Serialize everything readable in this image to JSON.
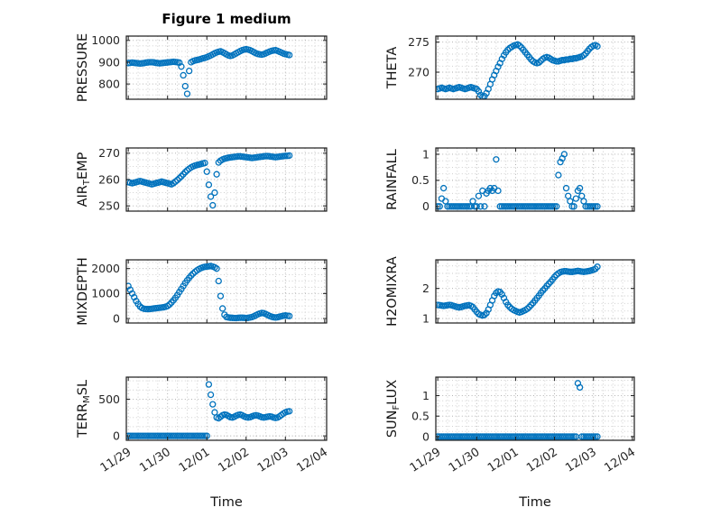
{
  "title": "Figure 1 medium",
  "xlabel": "Time",
  "marker_color": "#0072BD",
  "grid_major_color": "#a8a8a8",
  "grid_minor_color": "#c9c9c9",
  "x_tick_labels": [
    "11/29",
    "11/30",
    "12/01",
    "12/02",
    "12/03",
    "12/04"
  ],
  "x_tick_values": [
    0,
    1,
    2,
    3,
    4,
    5
  ],
  "xlim": [
    -0.05,
    5.05
  ],
  "time_days": [
    0,
    0.05,
    0.1,
    0.15,
    0.2,
    0.25,
    0.3,
    0.35,
    0.4,
    0.45,
    0.5,
    0.55,
    0.6,
    0.65,
    0.7,
    0.75,
    0.8,
    0.85,
    0.9,
    0.95,
    1,
    1.05,
    1.1,
    1.15,
    1.2,
    1.25,
    1.3,
    1.35,
    1.4,
    1.45,
    1.5,
    1.55,
    1.6,
    1.65,
    1.7,
    1.75,
    1.8,
    1.85,
    1.9,
    1.95,
    2,
    2.05,
    2.1,
    2.15,
    2.2,
    2.25,
    2.3,
    2.35,
    2.4,
    2.45,
    2.5,
    2.55,
    2.6,
    2.65,
    2.7,
    2.75,
    2.8,
    2.85,
    2.9,
    2.95,
    3,
    3.05,
    3.1,
    3.15,
    3.2,
    3.25,
    3.3,
    3.35,
    3.4,
    3.45,
    3.5,
    3.55,
    3.6,
    3.65,
    3.7,
    3.75,
    3.8,
    3.85,
    3.9,
    3.95,
    4,
    4.05,
    4.1
  ],
  "chart_data": [
    {
      "type": "scatter",
      "ylabel": "PRESSURE",
      "row": 0,
      "col": 0,
      "yticks": [
        800,
        900,
        1000
      ],
      "ylim": [
        730,
        1020
      ],
      "y_minor": 25,
      "y": [
        896,
        897,
        898,
        897,
        896,
        895,
        894,
        895,
        896,
        898,
        899,
        900,
        900,
        899,
        897,
        896,
        895,
        896,
        897,
        898,
        899,
        900,
        901,
        902,
        901,
        900,
        898,
        880,
        840,
        790,
        755,
        860,
        900,
        905,
        908,
        910,
        912,
        915,
        918,
        920,
        923,
        927,
        931,
        936,
        941,
        945,
        948,
        950,
        946,
        941,
        936,
        931,
        929,
        931,
        936,
        941,
        946,
        951,
        955,
        958,
        960,
        958,
        955,
        951,
        946,
        941,
        938,
        936,
        935,
        937,
        941,
        945,
        949,
        952,
        954,
        955,
        952,
        948,
        944,
        940,
        937,
        935,
        933
      ]
    },
    {
      "type": "scatter",
      "ylabel": "THETA",
      "row": 0,
      "col": 1,
      "yticks": [
        270,
        275
      ],
      "ylim": [
        265.5,
        276
      ],
      "y_minor": 1,
      "y": [
        267.2,
        267.3,
        267.4,
        267.3,
        267.2,
        267.3,
        267.4,
        267.3,
        267.2,
        267.3,
        267.4,
        267.5,
        267.4,
        267.3,
        267.2,
        267.3,
        267.4,
        267.5,
        267.4,
        267.3,
        267.2,
        266.8,
        266.2,
        265.9,
        266.0,
        266.5,
        267.2,
        268.0,
        268.8,
        269.5,
        270.2,
        270.9,
        271.5,
        272.2,
        272.8,
        273.3,
        273.7,
        274.0,
        274.2,
        274.4,
        274.5,
        274.6,
        274.4,
        274.1,
        273.7,
        273.3,
        272.9,
        272.5,
        272.1,
        271.8,
        271.6,
        271.5,
        271.6,
        271.9,
        272.2,
        272.4,
        272.5,
        272.4,
        272.2,
        272.0,
        271.9,
        271.8,
        271.8,
        271.9,
        272.0,
        272.0,
        272.1,
        272.1,
        272.2,
        272.2,
        272.3,
        272.3,
        272.4,
        272.5,
        272.6,
        272.8,
        273.1,
        273.5,
        273.9,
        274.2,
        274.4,
        274.5,
        274.3
      ]
    },
    {
      "type": "scatter",
      "ylabel": "AIR_TEMP",
      "row": 1,
      "col": 0,
      "yticks": [
        250,
        260,
        270
      ],
      "ylim": [
        248,
        272
      ],
      "y_minor": 2.5,
      "y": [
        259.0,
        258.8,
        258.6,
        258.8,
        259.0,
        259.2,
        259.4,
        259.2,
        259.0,
        258.8,
        258.6,
        258.4,
        258.2,
        258.4,
        258.6,
        258.8,
        259.0,
        259.2,
        259.0,
        258.8,
        258.6,
        258.4,
        258.2,
        258.6,
        259.2,
        259.8,
        260.5,
        261.2,
        262.0,
        262.8,
        263.5,
        264.1,
        264.6,
        265.0,
        265.3,
        265.5,
        265.7,
        265.9,
        266.1,
        266.3,
        263.0,
        258.0,
        253.5,
        250.2,
        255.0,
        262.0,
        266.5,
        267.2,
        267.6,
        267.9,
        268.1,
        268.3,
        268.4,
        268.5,
        268.6,
        268.7,
        268.8,
        268.8,
        268.7,
        268.6,
        268.5,
        268.4,
        268.3,
        268.2,
        268.3,
        268.4,
        268.5,
        268.6,
        268.7,
        268.8,
        268.9,
        268.9,
        268.8,
        268.7,
        268.6,
        268.5,
        268.6,
        268.7,
        268.8,
        268.9,
        269.0,
        269.0,
        269.1
      ]
    },
    {
      "type": "scatter",
      "ylabel": "RAINFALL",
      "row": 1,
      "col": 1,
      "yticks": [
        0,
        0.5,
        1
      ],
      "ylim": [
        -0.09,
        1.12
      ],
      "y_minor": 0.125,
      "y": [
        0,
        0,
        0.15,
        0.35,
        0.1,
        0,
        0,
        0,
        0,
        0,
        0,
        0,
        0,
        0,
        0,
        0,
        0,
        0,
        0.1,
        0,
        0,
        0.2,
        0,
        0.3,
        0,
        0.25,
        0.3,
        0.35,
        0.3,
        0.35,
        0.9,
        0.3,
        0,
        0,
        0,
        0,
        0,
        0,
        0,
        0,
        0,
        0,
        0,
        0,
        0,
        0,
        0,
        0,
        0,
        0,
        0,
        0,
        0,
        0,
        0,
        0,
        0,
        0,
        0,
        0,
        0,
        0,
        0.6,
        0.85,
        0.92,
        1.0,
        0.35,
        0.2,
        0.1,
        0,
        0,
        0.15,
        0.3,
        0.35,
        0.2,
        0.1,
        0,
        0,
        0,
        0,
        0,
        0,
        0
      ]
    },
    {
      "type": "scatter",
      "ylabel": "MIXDEPTH",
      "row": 2,
      "col": 0,
      "yticks": [
        0,
        1000,
        2000
      ],
      "ylim": [
        -180,
        2350
      ],
      "y_minor": 250,
      "y": [
        1300,
        1150,
        1000,
        850,
        700,
        580,
        480,
        420,
        390,
        380,
        375,
        380,
        390,
        400,
        410,
        420,
        430,
        440,
        450,
        470,
        500,
        560,
        640,
        730,
        830,
        940,
        1060,
        1180,
        1300,
        1420,
        1530,
        1630,
        1720,
        1800,
        1870,
        1930,
        1980,
        2020,
        2050,
        2070,
        2080,
        2090,
        2100,
        2080,
        2050,
        2000,
        1500,
        900,
        400,
        150,
        60,
        40,
        30,
        25,
        20,
        20,
        25,
        30,
        30,
        25,
        20,
        25,
        40,
        60,
        90,
        130,
        170,
        200,
        220,
        210,
        180,
        140,
        100,
        70,
        50,
        40,
        50,
        70,
        90,
        110,
        120,
        110,
        100
      ]
    },
    {
      "type": "scatter",
      "ylabel": "H2OMIXRA",
      "row": 2,
      "col": 1,
      "yticks": [
        1,
        2
      ],
      "ylim": [
        0.85,
        2.95
      ],
      "y_minor": 0.25,
      "y": [
        1.45,
        1.44,
        1.43,
        1.42,
        1.43,
        1.44,
        1.45,
        1.44,
        1.42,
        1.4,
        1.38,
        1.37,
        1.38,
        1.4,
        1.42,
        1.43,
        1.44,
        1.42,
        1.38,
        1.3,
        1.22,
        1.15,
        1.12,
        1.1,
        1.12,
        1.18,
        1.3,
        1.45,
        1.6,
        1.75,
        1.85,
        1.9,
        1.88,
        1.8,
        1.68,
        1.55,
        1.45,
        1.38,
        1.32,
        1.28,
        1.25,
        1.22,
        1.2,
        1.22,
        1.25,
        1.28,
        1.32,
        1.38,
        1.45,
        1.52,
        1.6,
        1.68,
        1.76,
        1.85,
        1.93,
        2.0,
        2.08,
        2.15,
        2.22,
        2.3,
        2.38,
        2.45,
        2.5,
        2.54,
        2.56,
        2.57,
        2.57,
        2.56,
        2.55,
        2.55,
        2.56,
        2.57,
        2.58,
        2.57,
        2.56,
        2.55,
        2.56,
        2.57,
        2.58,
        2.6,
        2.62,
        2.65,
        2.72
      ]
    },
    {
      "type": "scatter",
      "ylabel": "TERR_MSL",
      "row": 3,
      "col": 0,
      "yticks": [
        0,
        500
      ],
      "ylim": [
        -60,
        800
      ],
      "y_minor": 125,
      "y": [
        0,
        0,
        0,
        0,
        0,
        0,
        0,
        0,
        0,
        0,
        0,
        0,
        0,
        0,
        0,
        0,
        0,
        0,
        0,
        0,
        0,
        0,
        0,
        0,
        0,
        0,
        0,
        0,
        0,
        0,
        0,
        0,
        0,
        0,
        0,
        0,
        0,
        0,
        0,
        0,
        0,
        700,
        560,
        430,
        320,
        250,
        240,
        260,
        280,
        290,
        285,
        270,
        255,
        250,
        260,
        275,
        285,
        290,
        280,
        265,
        255,
        250,
        255,
        265,
        275,
        280,
        275,
        265,
        255,
        250,
        255,
        260,
        265,
        260,
        250,
        245,
        250,
        265,
        285,
        305,
        320,
        330,
        335
      ]
    },
    {
      "type": "scatter",
      "ylabel": "SUN_FLUX",
      "row": 3,
      "col": 1,
      "yticks": [
        0,
        0.5,
        1
      ],
      "ylim": [
        -0.09,
        1.45
      ],
      "y_minor": 0.125,
      "y": [
        0,
        0,
        0,
        0,
        0,
        0,
        0,
        0,
        0,
        0,
        0,
        0,
        0,
        0,
        0,
        0,
        0,
        0,
        0,
        0,
        0,
        0,
        0,
        0,
        0,
        0,
        0,
        0,
        0,
        0,
        0,
        0,
        0,
        0,
        0,
        0,
        0,
        0,
        0,
        0,
        0,
        0,
        0,
        0,
        0,
        0,
        0,
        0,
        0,
        0,
        0,
        0,
        0,
        0,
        0,
        0,
        0,
        0,
        0,
        0,
        0,
        0,
        0,
        0,
        0,
        0,
        0,
        0,
        0,
        0,
        0,
        0,
        1.3,
        1.2,
        0,
        0,
        0,
        0,
        0,
        0,
        0,
        0,
        0
      ]
    }
  ]
}
